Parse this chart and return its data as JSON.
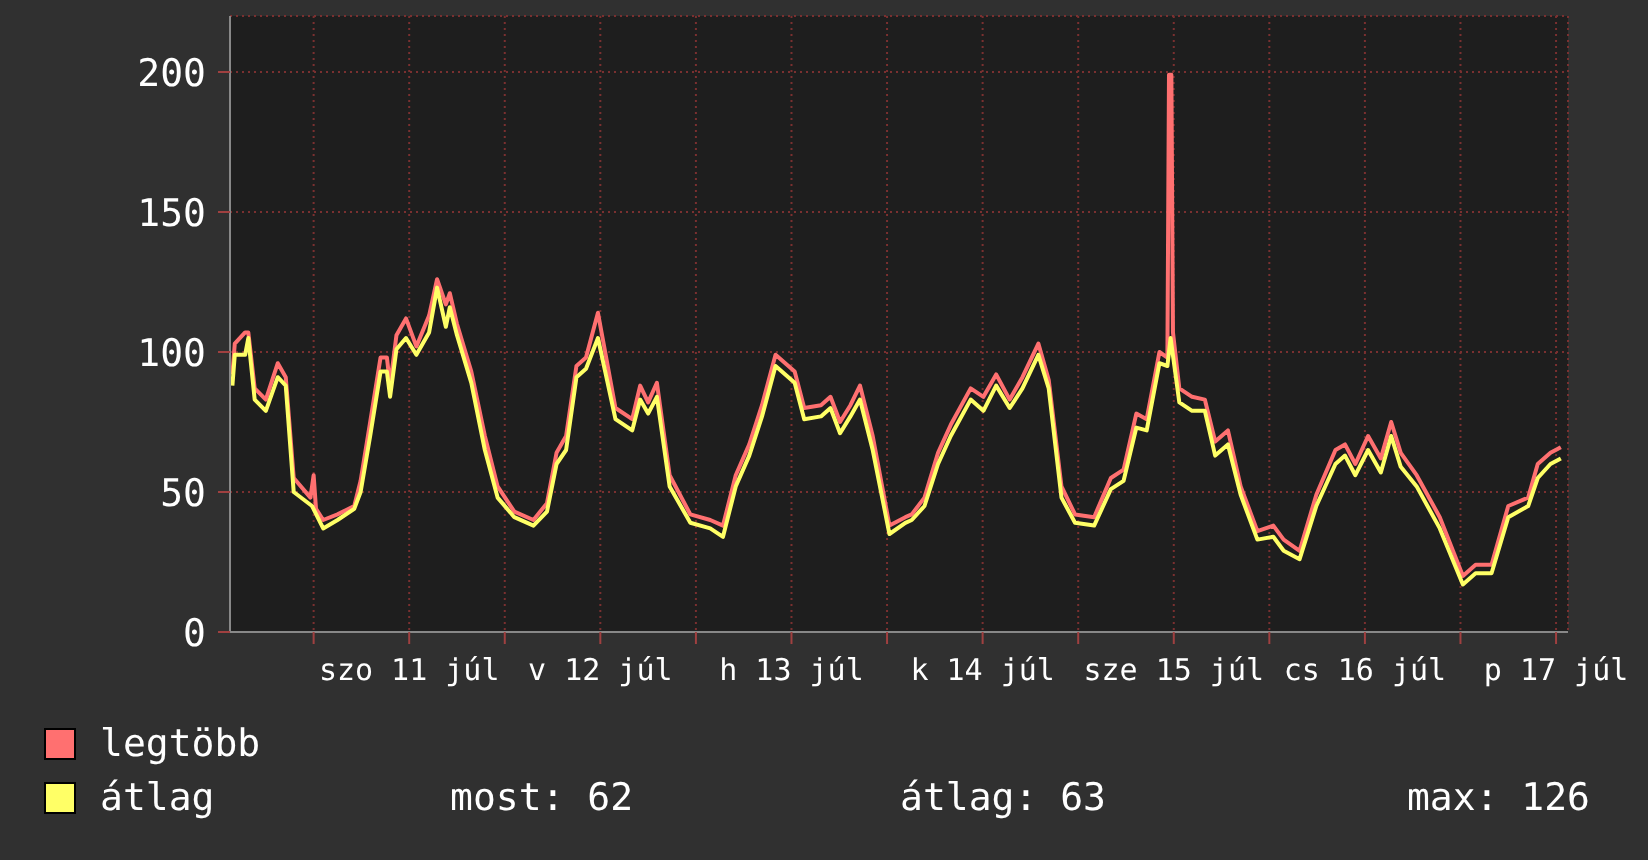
{
  "chart_data": {
    "type": "line",
    "xlim": [
      "--07-10T13:30",
      "--07-17T13:30"
    ],
    "ylim": [
      0,
      220
    ],
    "yticks": [
      0,
      50,
      100,
      150,
      200
    ],
    "xticks": [
      {
        "value": "--07-11T00:00",
        "label": null
      },
      {
        "value": "--07-11T12:00",
        "label": "szo 11 júl"
      },
      {
        "value": "--07-12T00:00",
        "label": null
      },
      {
        "value": "--07-12T12:00",
        "label": "v 12 júl"
      },
      {
        "value": "--07-13T00:00",
        "label": null
      },
      {
        "value": "--07-13T12:00",
        "label": "h 13 júl"
      },
      {
        "value": "--07-14T00:00",
        "label": null
      },
      {
        "value": "--07-14T12:00",
        "label": "k 14 júl"
      },
      {
        "value": "--07-15T00:00",
        "label": null
      },
      {
        "value": "--07-15T12:00",
        "label": "sze 15 júl"
      },
      {
        "value": "--07-16T00:00",
        "label": null
      },
      {
        "value": "--07-16T12:00",
        "label": "cs 16 júl"
      },
      {
        "value": "--07-17T00:00",
        "label": null
      },
      {
        "value": "--07-17T12:00",
        "label": "p 17 júl"
      }
    ],
    "grid": true,
    "legend": "bottom",
    "line_style": "solid",
    "annotations": [
      "most: 62",
      "átlag: 63",
      "max: 126"
    ],
    "series": [
      {
        "name": "legtöbb",
        "color": "#ff7070",
        "x": [
          "--07-10T13:48",
          "--07-10T14:06",
          "--07-10T15:24",
          "--07-10T15:48",
          "--07-10T16:36",
          "--07-10T18:00",
          "--07-10T19:30",
          "--07-10T20:30",
          "--07-10T21:30",
          "--07-10T23:36",
          "--07-11T00:00",
          "--07-11T00:18",
          "--07-11T01:12",
          "--07-11T03:00",
          "--07-11T05:06",
          "--07-11T05:54",
          "--07-11T07:06",
          "--07-11T08:24",
          "--07-11T09:12",
          "--07-11T09:36",
          "--07-11T10:24",
          "--07-11T11:36",
          "--07-11T12:54",
          "--07-11T14:30",
          "--07-11T15:30",
          "--07-11T16:36",
          "--07-11T17:06",
          "--07-11T18:00",
          "--07-11T19:48",
          "--07-11T21:30",
          "--07-11T23:06",
          "--07-12T01:12",
          "--07-12T03:36",
          "--07-12T05:18",
          "--07-12T06:30",
          "--07-12T07:42",
          "--07-12T09:00",
          "--07-12T10:12",
          "--07-12T11:42",
          "--07-12T13:54",
          "--07-12T16:00",
          "--07-12T17:00",
          "--07-12T18:00",
          "--07-12T19:06",
          "--07-12T20:42",
          "--07-12T23:18",
          "--07-13T01:48",
          "--07-13T03:24",
          "--07-13T05:00",
          "--07-13T06:42",
          "--07-13T08:18",
          "--07-13T10:00",
          "--07-13T12:24",
          "--07-13T13:36",
          "--07-13T15:42",
          "--07-13T16:54",
          "--07-13T18:06",
          "--07-13T19:24",
          "--07-13T20:36",
          "--07-13T22:12",
          "--07-14T00:18",
          "--07-14T02:18",
          "--07-14T03:06",
          "--07-14T04:42",
          "--07-14T06:24",
          "--07-14T08:00",
          "--07-14T10:30",
          "--07-14T12:06",
          "--07-14T13:42",
          "--07-14T15:24",
          "--07-14T17:00",
          "--07-14T19:00",
          "--07-14T20:18",
          "--07-14T21:54",
          "--07-14T23:36",
          "--07-15T02:00",
          "--07-15T04:06",
          "--07-15T05:42",
          "--07-15T07:18",
          "--07-15T08:36",
          "--07-15T10:12",
          "--07-15T11:12",
          "--07-15T11:24",
          "--07-15T11:42",
          "--07-15T11:54",
          "--07-15T12:42",
          "--07-15T14:18",
          "--07-15T15:54",
          "--07-15T17:12",
          "--07-15T18:48",
          "--07-15T20:24",
          "--07-15T22:30",
          "--07-16T00:30",
          "--07-16T01:48",
          "--07-16T03:48",
          "--07-16T05:54",
          "--07-16T08:18",
          "--07-16T09:30",
          "--07-16T10:48",
          "--07-16T12:24",
          "--07-16T14:00",
          "--07-16T15:18",
          "--07-16T16:30",
          "--07-16T18:30",
          "--07-16T21:24",
          "--07-17T00:18",
          "--07-17T01:54",
          "--07-17T03:54",
          "--07-17T06:00",
          "--07-17T08:30",
          "--07-17T09:42",
          "--07-17T11:18",
          "--07-17T12:36"
        ],
        "values": [
          92,
          103,
          107,
          107,
          87,
          83,
          96,
          91,
          55,
          48,
          56,
          44,
          40,
          42,
          45,
          54,
          75,
          98,
          98,
          88,
          106,
          112,
          102,
          113,
          126,
          117,
          121,
          110,
          93,
          70,
          52,
          43,
          40,
          46,
          64,
          70,
          95,
          98,
          114,
          80,
          76,
          88,
          82,
          89,
          56,
          42,
          40,
          38,
          56,
          67,
          81,
          99,
          93,
          80,
          81,
          84,
          75,
          81,
          88,
          70,
          38,
          41,
          42,
          48,
          64,
          74,
          87,
          84,
          92,
          83,
          91,
          103,
          90,
          52,
          42,
          41,
          55,
          58,
          78,
          76,
          100,
          98,
          199,
          199,
          107,
          87,
          84,
          83,
          68,
          72,
          52,
          36,
          38,
          33,
          29,
          49,
          65,
          67,
          60,
          70,
          62,
          75,
          64,
          56,
          41,
          20,
          24,
          24,
          45,
          48,
          60,
          64,
          66
        ]
      },
      {
        "name": "átlag",
        "color": "#ffff66",
        "x": [
          "--07-10T13:48",
          "--07-10T14:06",
          "--07-10T15:24",
          "--07-10T15:48",
          "--07-10T16:36",
          "--07-10T18:00",
          "--07-10T19:30",
          "--07-10T20:30",
          "--07-10T21:30",
          "--07-10T23:48",
          "--07-11T01:12",
          "--07-11T03:00",
          "--07-11T05:06",
          "--07-11T05:54",
          "--07-11T07:06",
          "--07-11T08:24",
          "--07-11T09:12",
          "--07-11T09:36",
          "--07-11T10:24",
          "--07-11T11:36",
          "--07-11T12:54",
          "--07-11T14:30",
          "--07-11T15:30",
          "--07-11T16:36",
          "--07-11T17:06",
          "--07-11T18:00",
          "--07-11T19:48",
          "--07-11T21:30",
          "--07-11T23:06",
          "--07-12T01:12",
          "--07-12T03:36",
          "--07-12T05:18",
          "--07-12T06:30",
          "--07-12T07:42",
          "--07-12T09:00",
          "--07-12T10:12",
          "--07-12T11:42",
          "--07-12T13:54",
          "--07-12T16:00",
          "--07-12T17:00",
          "--07-12T18:00",
          "--07-12T19:06",
          "--07-12T20:42",
          "--07-12T23:18",
          "--07-13T01:48",
          "--07-13T03:24",
          "--07-13T05:00",
          "--07-13T06:42",
          "--07-13T08:18",
          "--07-13T10:00",
          "--07-13T12:24",
          "--07-13T13:36",
          "--07-13T15:42",
          "--07-13T16:54",
          "--07-13T18:06",
          "--07-13T19:24",
          "--07-13T20:36",
          "--07-13T22:12",
          "--07-14T00:18",
          "--07-14T02:18",
          "--07-14T03:06",
          "--07-14T04:42",
          "--07-14T06:24",
          "--07-14T08:00",
          "--07-14T10:30",
          "--07-14T12:06",
          "--07-14T13:42",
          "--07-14T15:24",
          "--07-14T17:00",
          "--07-14T19:00",
          "--07-14T20:18",
          "--07-14T21:54",
          "--07-14T23:36",
          "--07-15T02:00",
          "--07-15T04:06",
          "--07-15T05:42",
          "--07-15T07:18",
          "--07-15T08:36",
          "--07-15T10:12",
          "--07-15T11:12",
          "--07-15T11:36",
          "--07-15T12:42",
          "--07-15T14:18",
          "--07-15T15:54",
          "--07-15T17:12",
          "--07-15T18:48",
          "--07-15T20:24",
          "--07-15T22:30",
          "--07-16T00:30",
          "--07-16T01:48",
          "--07-16T03:48",
          "--07-16T05:54",
          "--07-16T08:18",
          "--07-16T09:30",
          "--07-16T10:48",
          "--07-16T12:24",
          "--07-16T14:00",
          "--07-16T15:18",
          "--07-16T16:30",
          "--07-16T18:30",
          "--07-16T21:24",
          "--07-17T00:18",
          "--07-17T01:54",
          "--07-17T03:54",
          "--07-17T06:00",
          "--07-17T08:30",
          "--07-17T09:42",
          "--07-17T11:18",
          "--07-17T12:36"
        ],
        "values": [
          88,
          99,
          99,
          105,
          83,
          79,
          91,
          88,
          50,
          45,
          37,
          40,
          44,
          50,
          70,
          93,
          93,
          84,
          101,
          105,
          99,
          107,
          123,
          109,
          116,
          106,
          89,
          65,
          48,
          41,
          38,
          43,
          60,
          65,
          91,
          94,
          105,
          76,
          72,
          83,
          78,
          84,
          52,
          39,
          37,
          34,
          52,
          63,
          77,
          95,
          89,
          76,
          77,
          80,
          71,
          77,
          83,
          65,
          35,
          39,
          40,
          45,
          60,
          70,
          83,
          79,
          88,
          80,
          87,
          99,
          87,
          48,
          39,
          38,
          51,
          54,
          73,
          72,
          96,
          95,
          105,
          82,
          79,
          79,
          63,
          67,
          49,
          33,
          34,
          29,
          26,
          45,
          60,
          63,
          56,
          65,
          57,
          70,
          59,
          52,
          37,
          17,
          21,
          21,
          41,
          45,
          55,
          60,
          62
        ]
      }
    ]
  }
}
